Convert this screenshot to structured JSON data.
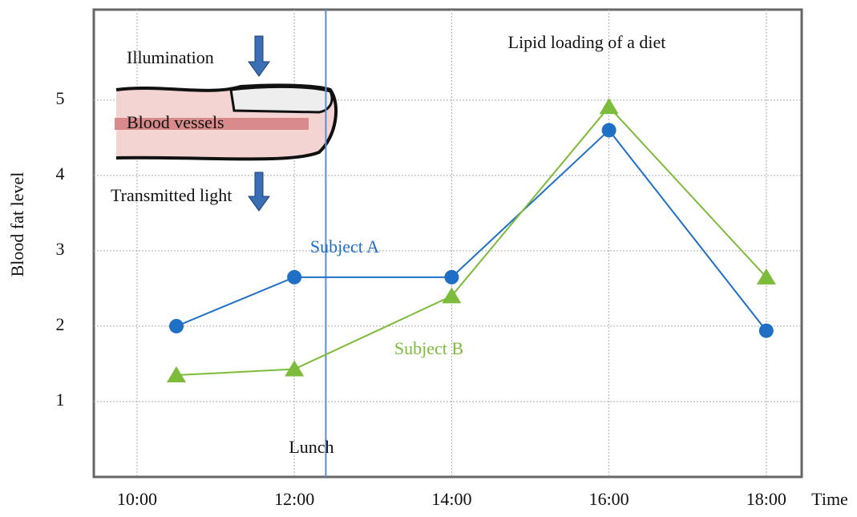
{
  "chart_data": {
    "type": "line",
    "title": "Lipid loading of a diet",
    "y_label": "Blood fat level",
    "x_label": "Time",
    "x": [
      10.5,
      12,
      14,
      16,
      18
    ],
    "xlim": [
      9.45,
      18.45
    ],
    "xticks": [
      {
        "value": 10,
        "label": "10:00"
      },
      {
        "value": 12,
        "label": "12:00"
      },
      {
        "value": 14,
        "label": "14:00"
      },
      {
        "value": 16,
        "label": "16:00"
      },
      {
        "value": 18,
        "label": "18:00"
      }
    ],
    "ylim": [
      0,
      6.2
    ],
    "yticks": [
      1,
      2,
      3,
      4,
      5
    ],
    "grid": true,
    "series": [
      {
        "name": "Subject A",
        "color": "#1f6fc5",
        "marker": "circle",
        "values": [
          2.0,
          2.65,
          2.65,
          4.6,
          1.94
        ]
      },
      {
        "name": "Subject B",
        "color": "#7dbb3a",
        "marker": "triangle",
        "values": [
          1.35,
          1.43,
          2.4,
          4.91,
          2.65
        ]
      }
    ],
    "annotations": [
      {
        "text": "Lunch",
        "x": 12.4
      }
    ],
    "inset": {
      "illumination": "Illumination",
      "vessels": "Blood vessels",
      "transmitted": "Transmitted light"
    }
  }
}
